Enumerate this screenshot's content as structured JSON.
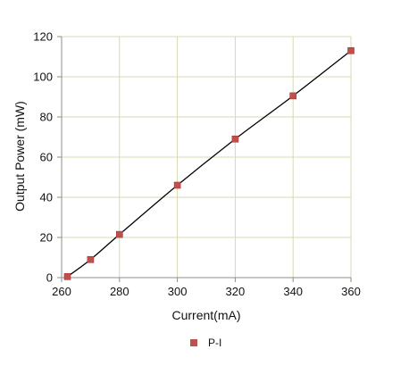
{
  "chart_data": {
    "type": "scatter",
    "title": "",
    "xlabel": "Current(mA)",
    "ylabel": "Output Power (mW)",
    "xlim": [
      260,
      360
    ],
    "ylim": [
      0,
      120
    ],
    "x_ticks": [
      260,
      280,
      300,
      320,
      340,
      360
    ],
    "y_ticks": [
      0,
      20,
      40,
      60,
      80,
      100,
      120
    ],
    "grid": true,
    "legend_position": "bottom",
    "series": [
      {
        "name": "P-I",
        "marker": "square",
        "marker_color": "#c0504d",
        "line_color": "#000000",
        "smooth_line": true,
        "points": [
          {
            "x": 262,
            "y": 0.5
          },
          {
            "x": 270,
            "y": 9
          },
          {
            "x": 280,
            "y": 21.5
          },
          {
            "x": 300,
            "y": 46
          },
          {
            "x": 320,
            "y": 69
          },
          {
            "x": 340,
            "y": 90.5
          },
          {
            "x": 360,
            "y": 113
          }
        ]
      }
    ],
    "colors": {
      "grid": "#d9d9b3",
      "axis": "#8c8c8c"
    }
  }
}
